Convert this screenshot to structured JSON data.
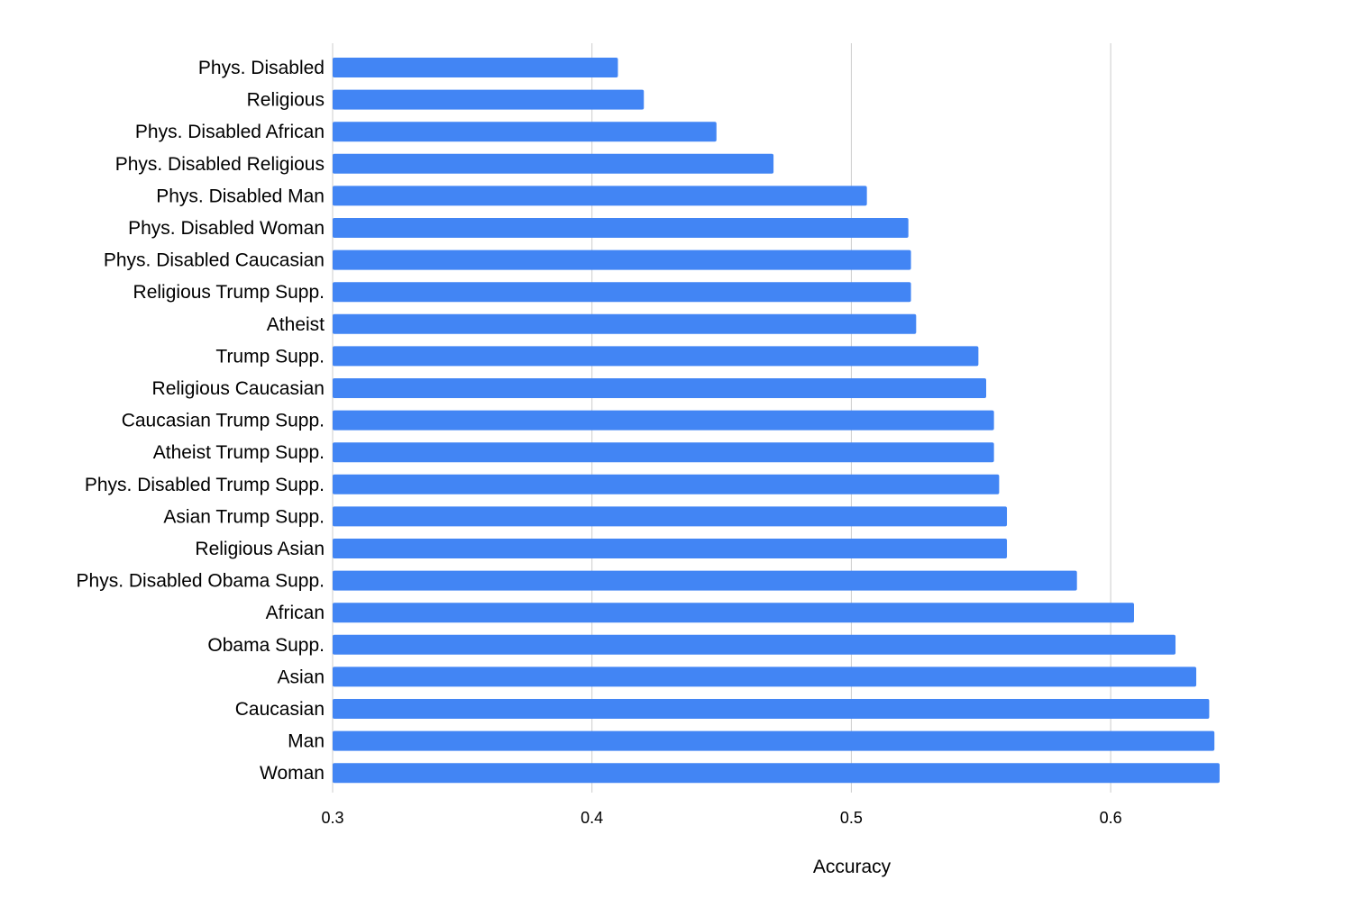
{
  "chart_data": {
    "type": "bar",
    "orientation": "horizontal",
    "title": "",
    "xlabel": "Accuracy",
    "ylabel": "",
    "xlim": [
      0.3,
      0.65
    ],
    "xticks": [
      "0.3",
      "0.4",
      "0.5",
      "0.6"
    ],
    "xtick_values": [
      0.3,
      0.4,
      0.5,
      0.6
    ],
    "grid": true,
    "legend": "none",
    "bar_color": "#4285f4",
    "categories": [
      "Phys. Disabled",
      "Religious",
      "Phys. Disabled African",
      "Phys. Disabled Religious",
      "Phys. Disabled Man",
      "Phys. Disabled Woman",
      "Phys. Disabled Caucasian",
      "Religious Trump Supp.",
      "Atheist",
      "Trump Supp.",
      "Religious Caucasian",
      "Caucasian Trump Supp.",
      "Atheist Trump Supp.",
      "Phys. Disabled Trump Supp.",
      "Asian Trump Supp.",
      "Religious Asian",
      "Phys. Disabled Obama Supp.",
      "African",
      "Obama Supp.",
      "Asian",
      "Caucasian",
      "Man",
      "Woman"
    ],
    "values": [
      0.41,
      0.42,
      0.448,
      0.47,
      0.506,
      0.522,
      0.523,
      0.523,
      0.525,
      0.549,
      0.552,
      0.555,
      0.555,
      0.557,
      0.56,
      0.56,
      0.587,
      0.609,
      0.625,
      0.633,
      0.638,
      0.64,
      0.642
    ]
  }
}
